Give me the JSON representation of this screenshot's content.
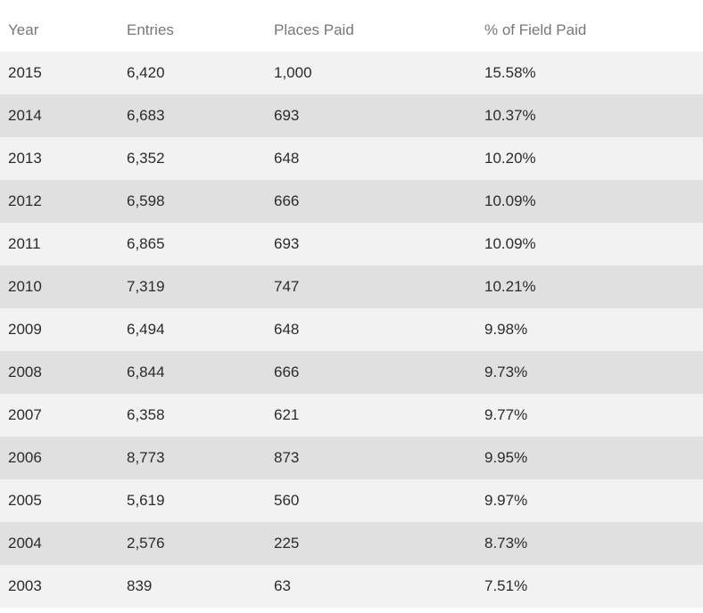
{
  "table": {
    "headers": [
      "Year",
      "Entries",
      "Places Paid",
      "% of Field Paid"
    ],
    "rows": [
      [
        "2015",
        "6,420",
        "1,000",
        "15.58%"
      ],
      [
        "2014",
        "6,683",
        "693",
        "10.37%"
      ],
      [
        "2013",
        "6,352",
        "648",
        "10.20%"
      ],
      [
        "2012",
        "6,598",
        "666",
        "10.09%"
      ],
      [
        "2011",
        "6,865",
        "693",
        "10.09%"
      ],
      [
        "2010",
        "7,319",
        "747",
        "10.21%"
      ],
      [
        "2009",
        "6,494",
        "648",
        "9.98%"
      ],
      [
        "2008",
        "6,844",
        "666",
        "9.73%"
      ],
      [
        "2007",
        "6,358",
        "621",
        "9.77%"
      ],
      [
        "2006",
        "8,773",
        "873",
        "9.95%"
      ],
      [
        "2005",
        "5,619",
        "560",
        "9.97%"
      ],
      [
        "2004",
        "2,576",
        "225",
        "8.73%"
      ],
      [
        "2003",
        "839",
        "63",
        "7.51%"
      ]
    ]
  }
}
